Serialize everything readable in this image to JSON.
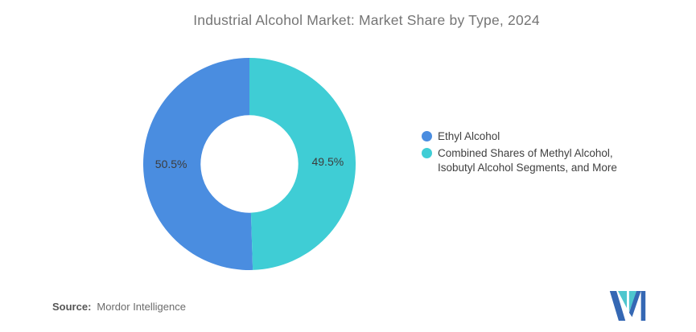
{
  "title": "Industrial Alcohol Market: Market Share by Type, 2024",
  "chart_data": {
    "type": "pie",
    "donut": true,
    "title": "Industrial Alcohol Market: Market Share by Type, 2024",
    "series": [
      {
        "name": "Ethyl Alcohol",
        "value": 50.5,
        "color": "#4A8DE0"
      },
      {
        "name": "Combined Shares of Methyl Alcohol, Isobutyl Alcohol Segments, and More",
        "value": 49.5,
        "color": "#3FCDD5"
      }
    ],
    "slice_labels": [
      "50.5%",
      "49.5%"
    ],
    "inner_radius_ratio": 0.46,
    "start_angle": "top",
    "direction": "counterclockwise",
    "legend_position": "right",
    "label_color": "#3c3c3c"
  },
  "legend": {
    "items": [
      {
        "label": "Ethyl Alcohol",
        "color": "#4A8DE0"
      },
      {
        "label": "Combined Shares of Methyl Alcohol,\nIsobutyl Alcohol Segments, and More",
        "color": "#3FCDD5"
      }
    ]
  },
  "source": {
    "prefix": "Source:",
    "text": "Mordor Intelligence"
  },
  "logo": {
    "name": "mordor-intelligence-logo",
    "navy": "#3568B4",
    "teal": "#4EC6CE"
  }
}
